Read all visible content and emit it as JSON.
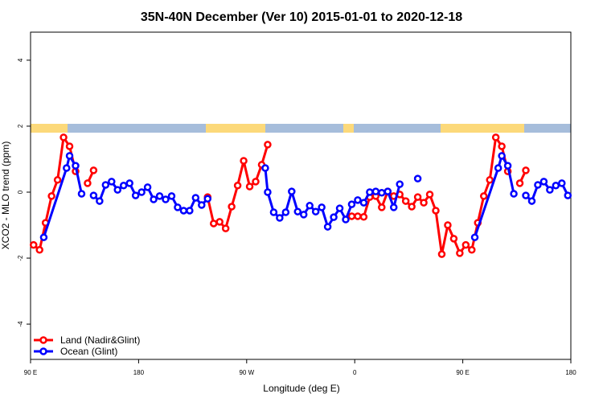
{
  "chart_data": {
    "type": "line",
    "title": "35N-40N December (Ver 10)   2015-01-01 to 2020-12-18",
    "x_label": "Longitude (deg E)",
    "y_label": "XCO2 - MLO trend (ppm)",
    "xlim": [
      90,
      540
    ],
    "xticks": [
      {
        "value": 90,
        "label": "90 E"
      },
      180,
      {
        "value": 270,
        "label": "90 W"
      },
      {
        "value": 360,
        "label": "0"
      },
      {
        "value": 450,
        "label": "90 E"
      },
      {
        "value": 540,
        "label": "180"
      }
    ],
    "ylim": [
      -5.07,
      4.85
    ],
    "yticks": [
      -4,
      -2,
      0,
      2,
      4
    ],
    "legend": "bottom-left",
    "series": [
      {
        "name": "Land (Nadir&Glint)",
        "color": "#ff0000",
        "x": [
          92.5,
          97.5,
          102.5,
          107.5,
          112.5,
          117.5,
          122.5,
          127.5,
          132.5,
          137.5,
          142.5,
          147.5,
          237.5,
          242.5,
          247.5,
          252.5,
          257.5,
          262.5,
          267.5,
          272.5,
          277.5,
          282.5,
          287.5,
          292.5,
          357.5,
          362.5,
          367.5,
          372.5,
          377.5,
          382.5,
          387.5,
          392.5,
          397.5,
          402.5,
          407.5,
          412.5,
          417.5,
          422.5,
          427.5,
          432.5,
          437.5,
          442.5,
          447.5,
          452.5,
          457.5,
          462.5,
          467.5,
          472.5,
          477.5,
          482.5,
          487.5,
          492.5,
          497.5,
          502.5
        ],
        "values": [
          -1.6,
          -1.75,
          -0.93,
          -0.12,
          0.37,
          1.66,
          1.39,
          0.63,
          null,
          0.27,
          0.66,
          null,
          -0.15,
          -0.95,
          -0.9,
          -1.1,
          -0.44,
          0.2,
          0.95,
          0.17,
          0.32,
          0.83,
          1.44,
          null,
          -0.73,
          -0.73,
          -0.75,
          -0.15,
          -0.12,
          -0.46,
          0.02,
          -0.12,
          -0.07,
          -0.27,
          -0.44,
          -0.15,
          -0.32,
          -0.07,
          -0.56,
          -1.88,
          -1.0,
          -1.41,
          -1.85,
          -1.6,
          -1.75,
          -0.93,
          -0.12,
          0.37,
          1.66,
          1.39,
          0.63,
          null,
          0.27,
          0.66
        ]
      },
      {
        "name": "Ocean (Glint)",
        "color": "#0000ff",
        "x": [
          101,
          120,
          122.5,
          127.5,
          132.5,
          137.5,
          142.5,
          147.5,
          152.5,
          157.5,
          162.5,
          167.5,
          172.5,
          177.5,
          182.5,
          187.5,
          192.5,
          197.5,
          202.5,
          207.5,
          212.5,
          217.5,
          222.5,
          227.5,
          232.5,
          237.5,
          242.5,
          285.5,
          287.5,
          292.5,
          297.5,
          302.5,
          307.5,
          312.5,
          317.5,
          322.5,
          327.5,
          332.5,
          337.5,
          342.5,
          347.5,
          352.5,
          357.5,
          362.5,
          367.5,
          372.5,
          377.5,
          382.5,
          387.5,
          392.5,
          397.5,
          402.5,
          412.5,
          417.5,
          460,
          479.5,
          482.5,
          487.5,
          492.5,
          497.5,
          502.5,
          507.5,
          512.5,
          517.5,
          522.5,
          527.5,
          532.5,
          537.5
        ],
        "values": [
          -1.37,
          0.73,
          1.1,
          0.8,
          -0.05,
          null,
          -0.1,
          -0.27,
          0.22,
          0.32,
          0.07,
          0.2,
          0.27,
          -0.1,
          0,
          0.15,
          -0.22,
          -0.12,
          -0.22,
          -0.12,
          -0.46,
          -0.56,
          -0.56,
          -0.17,
          -0.39,
          -0.2,
          null,
          0.73,
          0,
          -0.61,
          -0.78,
          -0.61,
          0.02,
          -0.59,
          -0.68,
          -0.41,
          -0.59,
          -0.46,
          -1.05,
          -0.76,
          -0.49,
          -0.83,
          -0.37,
          -0.24,
          -0.32,
          0,
          0.02,
          -0.02,
          0.02,
          -0.46,
          0.24,
          null,
          0.41,
          null,
          -1.37,
          0.73,
          1.1,
          0.8,
          -0.05,
          null,
          -0.1,
          -0.27,
          0.22,
          0.32,
          0.07,
          0.2,
          0.27,
          -0.1
        ]
      }
    ]
  }
}
